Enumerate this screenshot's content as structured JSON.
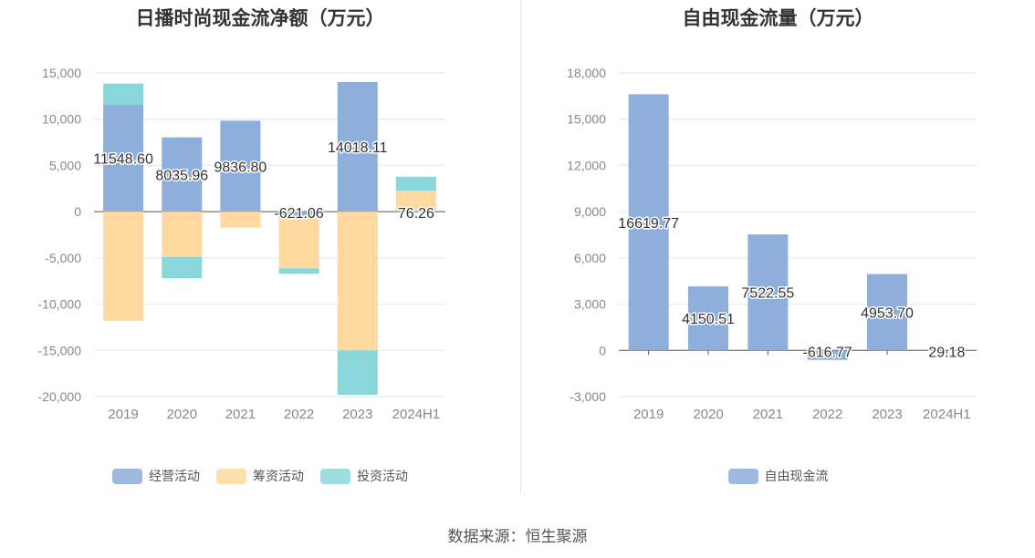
{
  "charts": [
    {
      "title": "日播时尚现金流净额（万元）",
      "chart_data": {
        "type": "bar",
        "stacked": true,
        "title": "日播时尚现金流净额（万元）",
        "categories": [
          "2019",
          "2020",
          "2021",
          "2022",
          "2023",
          "2024H1"
        ],
        "ylim": [
          -20000,
          15000
        ],
        "yticks": [
          15000,
          10000,
          5000,
          0,
          -5000,
          -10000,
          -15000,
          -20000
        ],
        "ytick_labels": [
          "15,000",
          "10,000",
          "5,000",
          "0",
          "-5,000",
          "-10,000",
          "-15,000",
          "-20,000"
        ],
        "series": [
          {
            "name": "经营活动",
            "color": "#8eaedb",
            "values": [
              11548.6,
              8035.96,
              9836.8,
              -621.06,
              14018.11,
              76.26
            ]
          },
          {
            "name": "筹资活动",
            "color": "#ffd9a0",
            "values": [
              -11800,
              -4900,
              -1700,
              -5500,
              -15000,
              2200
            ]
          },
          {
            "name": "投资活动",
            "color": "#8ad7db",
            "values": [
              2300,
              -2300,
              0,
              -600,
              -4800,
              1500
            ]
          }
        ],
        "data_labels": [
          "11548.60",
          "8035.96",
          "9836.80",
          "-621.06",
          "14018.11",
          "76.26"
        ],
        "legend": "bottom-center",
        "grid": true
      }
    },
    {
      "title": "自由现金流量（万元）",
      "chart_data": {
        "type": "bar",
        "title": "自由现金流量（万元）",
        "categories": [
          "2019",
          "2020",
          "2021",
          "2022",
          "2023",
          "2024H1"
        ],
        "ylim": [
          -3000,
          18000
        ],
        "yticks": [
          18000,
          15000,
          12000,
          9000,
          6000,
          3000,
          0,
          -3000
        ],
        "ytick_labels": [
          "18,000",
          "15,000",
          "12,000",
          "9,000",
          "6,000",
          "3,000",
          "0",
          "-3,000"
        ],
        "series": [
          {
            "name": "自由现金流",
            "color": "#8eaedb",
            "values": [
              16619.77,
              4150.51,
              7522.55,
              -616.77,
              4953.7,
              29.18
            ]
          }
        ],
        "data_labels": [
          "16619.77",
          "4150.51",
          "7522.55",
          "-616.77",
          "4953.70",
          "29.18"
        ],
        "legend": "bottom-center",
        "grid": true
      }
    }
  ],
  "footer": "数据来源：恒生聚源"
}
